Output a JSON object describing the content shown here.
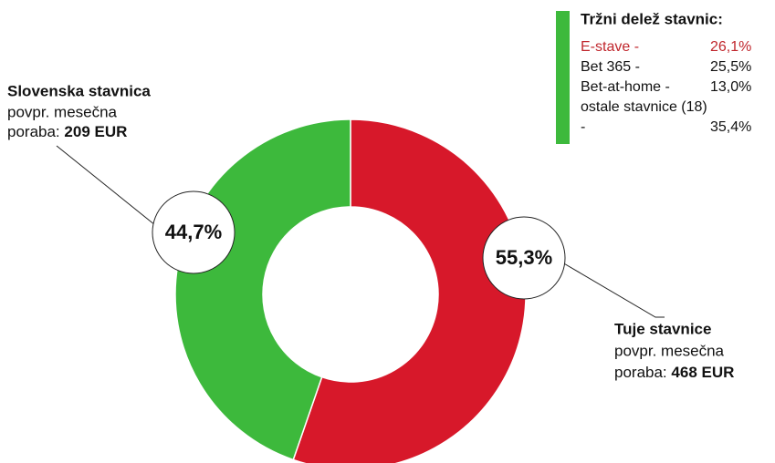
{
  "chart_data": {
    "type": "donut",
    "categories": [
      "Tuje stavnice",
      "Slovenska stavnica"
    ],
    "values": [
      55.3,
      44.7
    ],
    "value_labels": [
      "55,3%",
      "44,7%"
    ],
    "colors": [
      "#d7182a",
      "#3db93c"
    ],
    "notes": [
      {
        "line1": "povpr. mesečna",
        "line2": "poraba:",
        "amount": "468 EUR"
      },
      {
        "line1": "povpr. mesečna",
        "line2": "poraba:",
        "amount": "209 EUR"
      }
    ],
    "market_share": {
      "title": "Tržni delež stavnic:",
      "color": "#3db93c",
      "items": [
        {
          "name": "E-stave -",
          "share": "26,1%",
          "color": "#c0272d"
        },
        {
          "name": "Bet 365 -",
          "share": "25,5%",
          "color": "#111111"
        },
        {
          "name": "Bet-at-home -",
          "share": "13,0%",
          "color": "#111111"
        },
        {
          "name": "ostale stavnice (18) -",
          "share": "35,4%",
          "color": "#111111"
        }
      ]
    }
  }
}
